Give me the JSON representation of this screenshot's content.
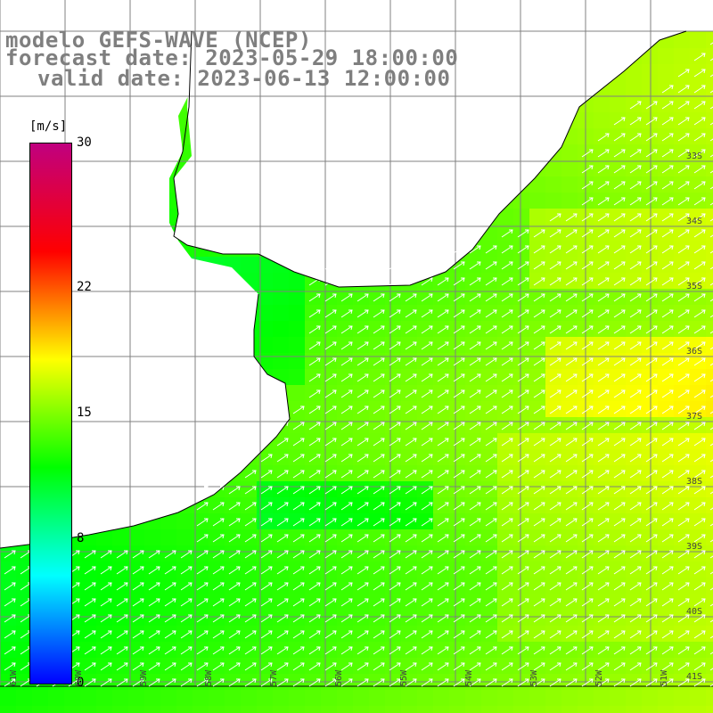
{
  "title": {
    "model": "modelo GEFS-WAVE (NCEP)",
    "forecast": "forecast date: 2023-05-29 18:00:00",
    "valid": "valid date: 2023-06-13 12:00:00"
  },
  "colorbar": {
    "units": "[m/s]",
    "ticks": [
      {
        "value": 30,
        "label": "30"
      },
      {
        "value": 22,
        "label": "22"
      },
      {
        "value": 15,
        "label": "15"
      },
      {
        "value": 8,
        "label": "8"
      },
      {
        "value": 0,
        "label": "0"
      }
    ],
    "colors": [
      "#0000ff",
      "#00ffff",
      "#00ff00",
      "#ffff00",
      "#ff0000",
      "#c0007f"
    ],
    "min": 0,
    "max": 30
  },
  "map": {
    "lat_labels": [
      "33S",
      "34S",
      "35S",
      "36S",
      "37S",
      "38S",
      "39S",
      "40S",
      "41S"
    ],
    "lon_labels": [
      "61W",
      "60W",
      "59W",
      "58W",
      "57W",
      "56W",
      "55W",
      "54W",
      "53W",
      "52W",
      "51W"
    ],
    "land_color": "#ffffff",
    "grid_color": "#808080",
    "arrow_color": "#ffffff",
    "wind_direction": "northeast"
  }
}
